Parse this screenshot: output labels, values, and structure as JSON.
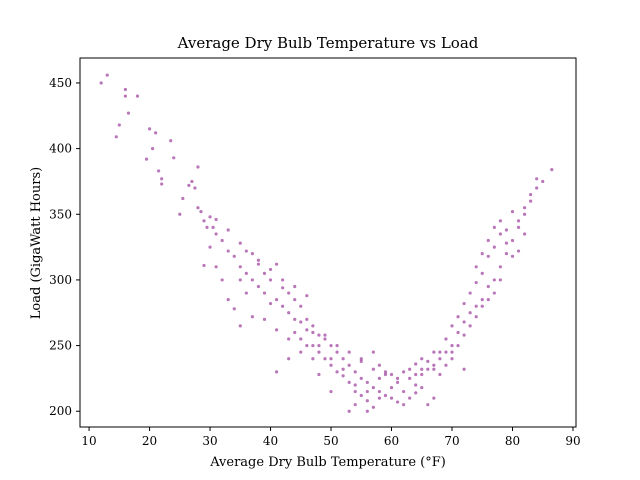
{
  "chart_data": {
    "type": "scatter",
    "title": "Average Dry Bulb Temperature vs Load",
    "xlabel": "Average Dry Bulb Temperature (°F)",
    "ylabel": "Load (GigaWatt Hours)",
    "xlim": [
      8.5,
      90.5
    ],
    "ylim": [
      188,
      469
    ],
    "xticks": [
      10,
      20,
      30,
      40,
      50,
      60,
      70,
      80,
      90
    ],
    "yticks": [
      200,
      250,
      300,
      350,
      400,
      450
    ],
    "grid": false,
    "legend": "none",
    "marker_color": "#8b1a8b",
    "marker_opacity": 0.6,
    "points": [
      [
        12,
        450
      ],
      [
        13,
        456
      ],
      [
        16,
        445
      ],
      [
        16.5,
        427
      ],
      [
        15,
        418
      ],
      [
        14.5,
        409
      ],
      [
        20,
        415
      ],
      [
        21,
        412
      ],
      [
        19.5,
        392
      ],
      [
        20.5,
        400
      ],
      [
        21.5,
        383
      ],
      [
        22,
        377
      ],
      [
        22,
        373
      ],
      [
        23.5,
        406
      ],
      [
        24,
        393
      ],
      [
        27,
        375
      ],
      [
        27.5,
        370
      ],
      [
        28,
        386
      ],
      [
        25,
        350
      ],
      [
        25.5,
        362
      ],
      [
        28.5,
        352
      ],
      [
        29,
        345
      ],
      [
        30,
        348
      ],
      [
        30.5,
        340
      ],
      [
        31,
        335
      ],
      [
        32,
        330
      ],
      [
        29.5,
        340
      ],
      [
        30,
        325
      ],
      [
        33,
        322
      ],
      [
        34,
        318
      ],
      [
        31,
        310
      ],
      [
        29,
        311
      ],
      [
        32,
        300
      ],
      [
        35,
        300
      ],
      [
        36,
        305
      ],
      [
        37,
        320
      ],
      [
        38,
        312
      ],
      [
        39,
        305
      ],
      [
        40,
        300
      ],
      [
        41,
        312
      ],
      [
        42,
        294
      ],
      [
        43,
        290
      ],
      [
        44,
        285
      ],
      [
        45,
        280
      ],
      [
        46,
        270
      ],
      [
        47,
        265
      ],
      [
        48,
        258
      ],
      [
        36,
        290
      ],
      [
        38,
        295
      ],
      [
        40,
        282
      ],
      [
        42,
        280
      ],
      [
        44,
        270
      ],
      [
        46,
        262
      ],
      [
        48,
        250
      ],
      [
        33,
        285
      ],
      [
        34,
        278
      ],
      [
        35,
        265
      ],
      [
        37,
        272
      ],
      [
        39,
        270
      ],
      [
        41,
        262
      ],
      [
        43,
        255
      ],
      [
        45,
        245
      ],
      [
        47,
        240
      ],
      [
        49,
        240
      ],
      [
        50,
        235
      ],
      [
        51,
        230
      ],
      [
        52,
        227
      ],
      [
        53,
        222
      ],
      [
        54,
        215
      ],
      [
        55,
        212
      ],
      [
        56,
        208
      ],
      [
        57,
        203
      ],
      [
        53,
        200
      ],
      [
        50,
        215
      ],
      [
        48,
        228
      ],
      [
        46,
        250
      ],
      [
        44,
        260
      ],
      [
        41,
        230
      ],
      [
        43,
        240
      ],
      [
        45,
        255
      ],
      [
        47,
        250
      ],
      [
        49,
        255
      ],
      [
        50,
        250
      ],
      [
        51,
        245
      ],
      [
        52,
        240
      ],
      [
        53,
        235
      ],
      [
        54,
        230
      ],
      [
        55,
        225
      ],
      [
        56,
        222
      ],
      [
        57,
        218
      ],
      [
        58,
        215
      ],
      [
        59,
        212
      ],
      [
        60,
        210
      ],
      [
        61,
        207
      ],
      [
        62,
        205
      ],
      [
        63,
        210
      ],
      [
        64,
        214
      ],
      [
        65,
        218
      ],
      [
        66,
        205
      ],
      [
        67,
        210
      ],
      [
        55,
        240
      ],
      [
        57,
        245
      ],
      [
        58,
        235
      ],
      [
        59,
        230
      ],
      [
        60,
        228
      ],
      [
        61,
        225
      ],
      [
        62,
        230
      ],
      [
        63,
        232
      ],
      [
        64,
        236
      ],
      [
        65,
        240
      ],
      [
        66,
        232
      ],
      [
        67,
        235
      ],
      [
        68,
        240
      ],
      [
        69,
        245
      ],
      [
        70,
        250
      ],
      [
        71,
        260
      ],
      [
        72,
        268
      ],
      [
        73,
        275
      ],
      [
        74,
        280
      ],
      [
        75,
        285
      ],
      [
        76,
        295
      ],
      [
        77,
        300
      ],
      [
        78,
        310
      ],
      [
        79,
        320
      ],
      [
        80,
        330
      ],
      [
        81,
        340
      ],
      [
        82,
        350
      ],
      [
        83,
        360
      ],
      [
        84,
        370
      ],
      [
        85,
        375
      ],
      [
        86.5,
        384
      ],
      [
        84,
        377
      ],
      [
        83,
        365
      ],
      [
        82,
        355
      ],
      [
        81,
        345
      ],
      [
        80,
        352
      ],
      [
        79,
        338
      ],
      [
        78,
        335
      ],
      [
        77,
        325
      ],
      [
        76,
        318
      ],
      [
        75,
        305
      ],
      [
        74,
        298
      ],
      [
        73,
        290
      ],
      [
        72,
        282
      ],
      [
        71,
        272
      ],
      [
        70,
        265
      ],
      [
        69,
        255
      ],
      [
        68,
        245
      ],
      [
        67,
        245
      ],
      [
        66,
        238
      ],
      [
        65,
        232
      ],
      [
        64,
        228
      ],
      [
        72,
        232
      ],
      [
        70,
        240
      ],
      [
        69,
        235
      ],
      [
        68,
        228
      ],
      [
        74,
        310
      ],
      [
        75,
        320
      ],
      [
        76,
        330
      ],
      [
        77,
        340
      ],
      [
        78,
        345
      ],
      [
        79,
        328
      ],
      [
        80,
        318
      ],
      [
        81,
        322
      ],
      [
        82,
        335
      ],
      [
        76,
        285
      ],
      [
        77,
        290
      ],
      [
        78,
        300
      ],
      [
        73,
        265
      ],
      [
        74,
        272
      ],
      [
        75,
        280
      ],
      [
        71,
        250
      ],
      [
        72,
        258
      ],
      [
        70,
        245
      ],
      [
        18,
        440
      ],
      [
        16,
        440
      ],
      [
        26.5,
        372
      ],
      [
        28,
        355
      ],
      [
        31,
        346
      ],
      [
        33,
        338
      ],
      [
        35,
        328
      ],
      [
        36,
        322
      ],
      [
        38,
        315
      ],
      [
        40,
        308
      ],
      [
        42,
        300
      ],
      [
        44,
        295
      ],
      [
        46,
        288
      ],
      [
        35,
        310
      ],
      [
        37,
        300
      ],
      [
        39,
        290
      ],
      [
        41,
        285
      ],
      [
        43,
        275
      ],
      [
        45,
        268
      ],
      [
        47,
        260
      ],
      [
        49,
        258
      ],
      [
        51,
        250
      ],
      [
        53,
        245
      ],
      [
        55,
        238
      ],
      [
        57,
        232
      ],
      [
        59,
        228
      ],
      [
        61,
        222
      ],
      [
        63,
        225
      ],
      [
        65,
        228
      ],
      [
        67,
        232
      ],
      [
        54,
        205
      ],
      [
        56,
        200
      ],
      [
        58,
        225
      ],
      [
        60,
        218
      ],
      [
        62,
        215
      ],
      [
        64,
        220
      ],
      [
        48,
        245
      ],
      [
        50,
        240
      ],
      [
        52,
        232
      ],
      [
        54,
        220
      ],
      [
        56,
        215
      ],
      [
        58,
        210
      ]
    ]
  }
}
